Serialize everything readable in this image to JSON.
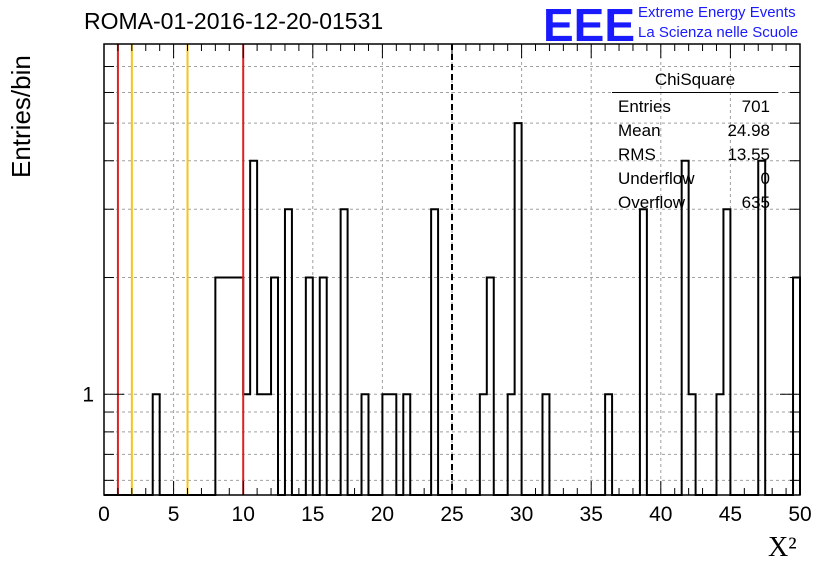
{
  "header": {
    "title": "ROMA-01-2016-12-20-01531",
    "logo_mark": "EEE",
    "logo_line_1": "Extreme Energy Events",
    "logo_line_2": "La Scienza nelle Scuole"
  },
  "stats": {
    "title": "ChiSquare",
    "rows": [
      {
        "label": "Entries",
        "value": "701"
      },
      {
        "label": "Mean",
        "value": "24.98"
      },
      {
        "label": "RMS",
        "value": "13.55"
      },
      {
        "label": "Underflow",
        "value": "0"
      },
      {
        "label": "Overflow",
        "value": "635"
      }
    ]
  },
  "colors": {
    "red_line": "#dd2222",
    "orange_line": "#f5c518",
    "histogram": "#000000",
    "grid": "#a0a0a0",
    "logo": "#1a1aff"
  },
  "chart_data": {
    "type": "bar",
    "title": "ROMA-01-2016-12-20-01531",
    "xlabel": "X²",
    "ylabel": "Entries/bin",
    "xlim": [
      0,
      50
    ],
    "ylim": [
      0.55,
      8
    ],
    "yscale": "log",
    "grid": true,
    "bin_width": 0.5,
    "x_ticks": [
      "0",
      "5",
      "10",
      "15",
      "20",
      "25",
      "30",
      "35",
      "40",
      "45",
      "50"
    ],
    "y_ticks": [
      "1"
    ],
    "bins": [
      {
        "x": 3.5,
        "y": 1
      },
      {
        "x": 8.0,
        "y": 2
      },
      {
        "x": 8.5,
        "y": 2
      },
      {
        "x": 9.0,
        "y": 2
      },
      {
        "x": 9.5,
        "y": 2
      },
      {
        "x": 10.0,
        "y": 1
      },
      {
        "x": 10.5,
        "y": 4
      },
      {
        "x": 11.0,
        "y": 1
      },
      {
        "x": 11.5,
        "y": 1
      },
      {
        "x": 12.0,
        "y": 2
      },
      {
        "x": 13.0,
        "y": 3
      },
      {
        "x": 14.5,
        "y": 2
      },
      {
        "x": 15.5,
        "y": 2
      },
      {
        "x": 17.0,
        "y": 3
      },
      {
        "x": 18.5,
        "y": 1
      },
      {
        "x": 20.0,
        "y": 1
      },
      {
        "x": 20.5,
        "y": 1
      },
      {
        "x": 21.5,
        "y": 1
      },
      {
        "x": 23.5,
        "y": 3
      },
      {
        "x": 27.0,
        "y": 1
      },
      {
        "x": 27.5,
        "y": 2
      },
      {
        "x": 29.0,
        "y": 1
      },
      {
        "x": 29.5,
        "y": 5
      },
      {
        "x": 31.5,
        "y": 1
      },
      {
        "x": 36.0,
        "y": 1
      },
      {
        "x": 38.5,
        "y": 3
      },
      {
        "x": 41.5,
        "y": 4
      },
      {
        "x": 42.0,
        "y": 1
      },
      {
        "x": 44.0,
        "y": 1
      },
      {
        "x": 44.5,
        "y": 3
      },
      {
        "x": 47.0,
        "y": 4
      },
      {
        "x": 49.5,
        "y": 2
      }
    ],
    "vertical_lines": [
      {
        "x": 1,
        "color": "red",
        "style": "solid"
      },
      {
        "x": 2,
        "color": "orange",
        "style": "solid"
      },
      {
        "x": 6,
        "color": "orange",
        "style": "solid"
      },
      {
        "x": 10,
        "color": "red",
        "style": "solid"
      },
      {
        "x": 25,
        "color": "black",
        "style": "dashed"
      }
    ]
  }
}
